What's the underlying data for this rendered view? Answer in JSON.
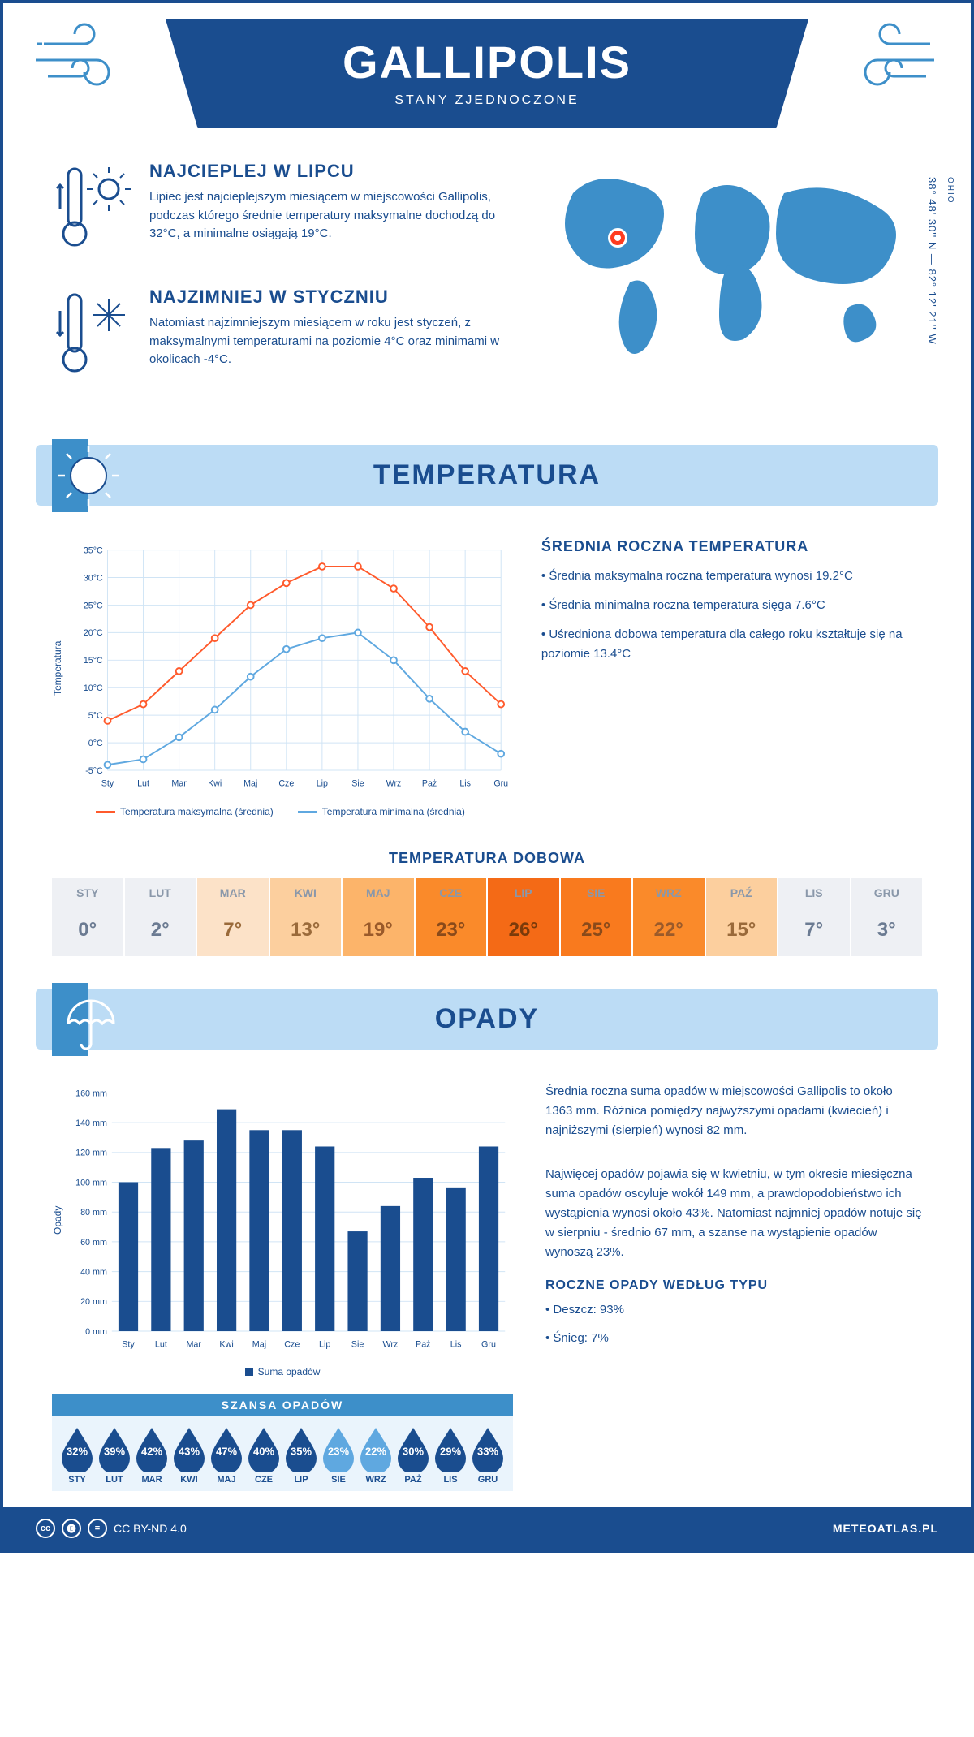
{
  "header": {
    "title": "GALLIPOLIS",
    "country": "STANY ZJEDNOCZONE"
  },
  "location": {
    "coords": "38° 48' 30'' N — 82° 12' 21'' W",
    "state": "OHIO",
    "marker_color": "#ff3c1f",
    "map_color": "#3d8fc9"
  },
  "intro": {
    "hot": {
      "title": "NAJCIEPLEJ W LIPCU",
      "text": "Lipiec jest najcieplejszym miesiącem w miejscowości Gallipolis, podczas którego średnie temperatury maksymalne dochodzą do 32°C, a minimalne osiągają 19°C."
    },
    "cold": {
      "title": "NAJZIMNIEJ W STYCZNIU",
      "text": "Natomiast najzimniejszym miesiącem w roku jest styczeń, z maksymalnymi temperaturami na poziomie 4°C oraz minimami w okolicach -4°C."
    }
  },
  "temperature": {
    "section_title": "TEMPERATURA",
    "chart": {
      "type": "line",
      "months": [
        "Sty",
        "Lut",
        "Mar",
        "Kwi",
        "Maj",
        "Cze",
        "Lip",
        "Sie",
        "Wrz",
        "Paż",
        "Lis",
        "Gru"
      ],
      "max": [
        4,
        7,
        13,
        19,
        25,
        29,
        32,
        32,
        28,
        21,
        13,
        7
      ],
      "min": [
        -4,
        -3,
        1,
        6,
        12,
        17,
        19,
        20,
        15,
        8,
        2,
        -2
      ],
      "max_color": "#ff5a2c",
      "min_color": "#5fa8e0",
      "grid_color": "#d0e4f5",
      "axis_color": "#1a4d8f",
      "ylim": [
        -5,
        35
      ],
      "ytick_step": 5,
      "y_suffix": "°C",
      "y_axis_label": "Temperatura",
      "line_width": 2,
      "marker": "circle",
      "marker_size": 4,
      "legend_max": "Temperatura maksymalna (średnia)",
      "legend_min": "Temperatura minimalna (średnia)"
    },
    "summary": {
      "title": "ŚREDNIA ROCZNA TEMPERATURA",
      "bullets": [
        "• Średnia maksymalna roczna temperatura wynosi 19.2°C",
        "• Średnia minimalna roczna temperatura sięga 7.6°C",
        "• Uśredniona dobowa temperatura dla całego roku kształtuje się na poziomie 13.4°C"
      ]
    },
    "daily": {
      "title": "TEMPERATURA DOBOWA",
      "months": [
        "STY",
        "LUT",
        "MAR",
        "KWI",
        "MAJ",
        "CZE",
        "LIP",
        "SIE",
        "WRZ",
        "PAŹ",
        "LIS",
        "GRU"
      ],
      "values": [
        "0°",
        "2°",
        "7°",
        "13°",
        "19°",
        "23°",
        "26°",
        "25°",
        "22°",
        "15°",
        "7°",
        "3°"
      ],
      "cell_bg": [
        "#eef0f4",
        "#eef0f4",
        "#fce2c8",
        "#fccf9e",
        "#fcb46a",
        "#fa8a2a",
        "#f46a16",
        "#f97a1e",
        "#fa8a2a",
        "#fccf9e",
        "#eef0f4",
        "#eef0f4"
      ],
      "cell_fg": [
        "#6b7b92",
        "#6b7b92",
        "#9a6a3a",
        "#9a6a3a",
        "#9a5a2a",
        "#8a4a1a",
        "#7a3a0a",
        "#8a4a1a",
        "#9a5a2a",
        "#9a6a3a",
        "#6b7b92",
        "#6b7b92"
      ],
      "cell_header_fg": "#8a98aa"
    }
  },
  "precip": {
    "section_title": "OPADY",
    "chart": {
      "type": "bar",
      "months": [
        "Sty",
        "Lut",
        "Mar",
        "Kwi",
        "Maj",
        "Cze",
        "Lip",
        "Sie",
        "Wrz",
        "Paż",
        "Lis",
        "Gru"
      ],
      "values": [
        100,
        123,
        128,
        149,
        135,
        135,
        124,
        67,
        84,
        103,
        96,
        124
      ],
      "bar_color": "#1a4d8f",
      "grid_color": "#d0e4f5",
      "ylim": [
        0,
        160
      ],
      "ytick_step": 20,
      "y_suffix": " mm",
      "y_axis_label": "Opady",
      "bar_width": 0.6,
      "legend": "Suma opadów"
    },
    "text1": "Średnia roczna suma opadów w miejscowości Gallipolis to około 1363 mm. Różnica pomiędzy najwyższymi opadami (kwiecień) i najniższymi (sierpień) wynosi 82 mm.",
    "text2": "Najwięcej opadów pojawia się w kwietniu, w tym okresie miesięczna suma opadów oscyluje wokół 149 mm, a prawdopodobieństwo ich wystąpienia wynosi około 43%. Natomiast najmniej opadów notuje się w sierpniu - średnio 67 mm, a szanse na wystąpienie opadów wynoszą 23%.",
    "chance": {
      "title": "SZANSA OPADÓW",
      "months": [
        "STY",
        "LUT",
        "MAR",
        "KWI",
        "MAJ",
        "CZE",
        "LIP",
        "SIE",
        "WRZ",
        "PAŻ",
        "LIS",
        "GRU"
      ],
      "values": [
        "32%",
        "39%",
        "42%",
        "43%",
        "47%",
        "40%",
        "35%",
        "23%",
        "22%",
        "30%",
        "29%",
        "33%"
      ],
      "drop_colors": [
        "#1a4d8f",
        "#1a4d8f",
        "#1a4d8f",
        "#1a4d8f",
        "#1a4d8f",
        "#1a4d8f",
        "#1a4d8f",
        "#5fa8e0",
        "#5fa8e0",
        "#1a4d8f",
        "#1a4d8f",
        "#1a4d8f"
      ]
    },
    "by_type": {
      "title": "ROCZNE OPADY WEDŁUG TYPU",
      "rain": "• Deszcz: 93%",
      "snow": "• Śnieg: 7%"
    }
  },
  "footer": {
    "license": "CC BY-ND 4.0",
    "site": "METEOATLAS.PL"
  },
  "colors": {
    "primary": "#1a4d8f",
    "band": "#bcdcf5",
    "accent": "#3d8fc9"
  }
}
